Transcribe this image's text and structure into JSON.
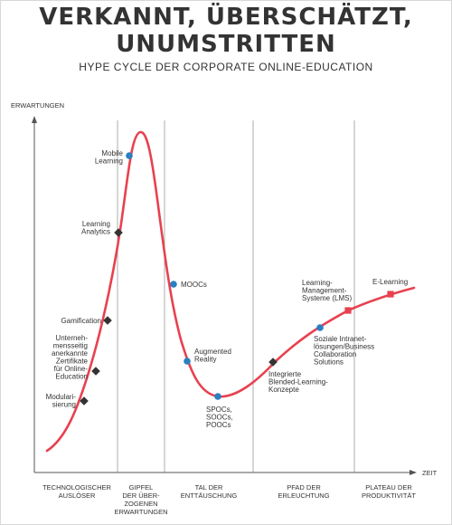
{
  "title_line1": "VERKANNT, ÜBERSCHÄTZT,",
  "title_line2": "UNUMSTRITTEN",
  "subtitle": "HYPE CYCLE DER CORPORATE ONLINE-EDUCATION",
  "y_axis_label": "ERWARTUNGEN",
  "x_axis_label": "ZEIT",
  "curve_color": "#e8414f",
  "phases": [
    [
      "TECHNOLOGISCHER",
      "AUSLÖSER"
    ],
    [
      "GIPFEL",
      "DER ÜBER-",
      "ZOGENEN",
      "ERWARTUNGEN"
    ],
    [
      "TAL DER",
      "ENTTÄUSCHUNG"
    ],
    [
      "PFAD DER",
      "ERLEUCHTUNG"
    ],
    [
      "PLATEAU DER",
      "PRODUKTIVITÄT"
    ]
  ],
  "items": [
    {
      "lines": [
        "Modulari-",
        "sierung"
      ],
      "marker": "diamond",
      "color": "#333333"
    },
    {
      "lines": [
        "Unterneh-",
        "mensseitig",
        "anerkannte",
        "Zertifikate",
        "für Online-",
        "Education"
      ],
      "marker": "diamond",
      "color": "#333333"
    },
    {
      "lines": [
        "Gamification"
      ],
      "marker": "diamond",
      "color": "#333333"
    },
    {
      "lines": [
        "Learning",
        "Analytics"
      ],
      "marker": "diamond",
      "color": "#333333"
    },
    {
      "lines": [
        "Mobile",
        "Learning"
      ],
      "marker": "circle",
      "color": "#2a7fc1"
    },
    {
      "lines": [
        "MOOCs"
      ],
      "marker": "circle",
      "color": "#2a7fc1"
    },
    {
      "lines": [
        "Augmented",
        "Reality"
      ],
      "marker": "circle",
      "color": "#2a7fc1"
    },
    {
      "lines": [
        "SPOCs,",
        "SOOCs,",
        "POOCs"
      ],
      "marker": "circle",
      "color": "#2a7fc1"
    },
    {
      "lines": [
        "Integrierte",
        "Blended-Learning-",
        "Konzepte"
      ],
      "marker": "diamond",
      "color": "#333333"
    },
    {
      "lines": [
        "Soziale Intranet-",
        "lösungen/Business",
        "Collaboration",
        "Solutions"
      ],
      "marker": "circle",
      "color": "#2a7fc1"
    },
    {
      "lines": [
        "Learning-",
        "Management-",
        "Systeme (LMS)"
      ],
      "marker": "square",
      "color": "#e8414f"
    },
    {
      "lines": [
        "E-Learning"
      ],
      "marker": "square",
      "color": "#e8414f"
    }
  ]
}
